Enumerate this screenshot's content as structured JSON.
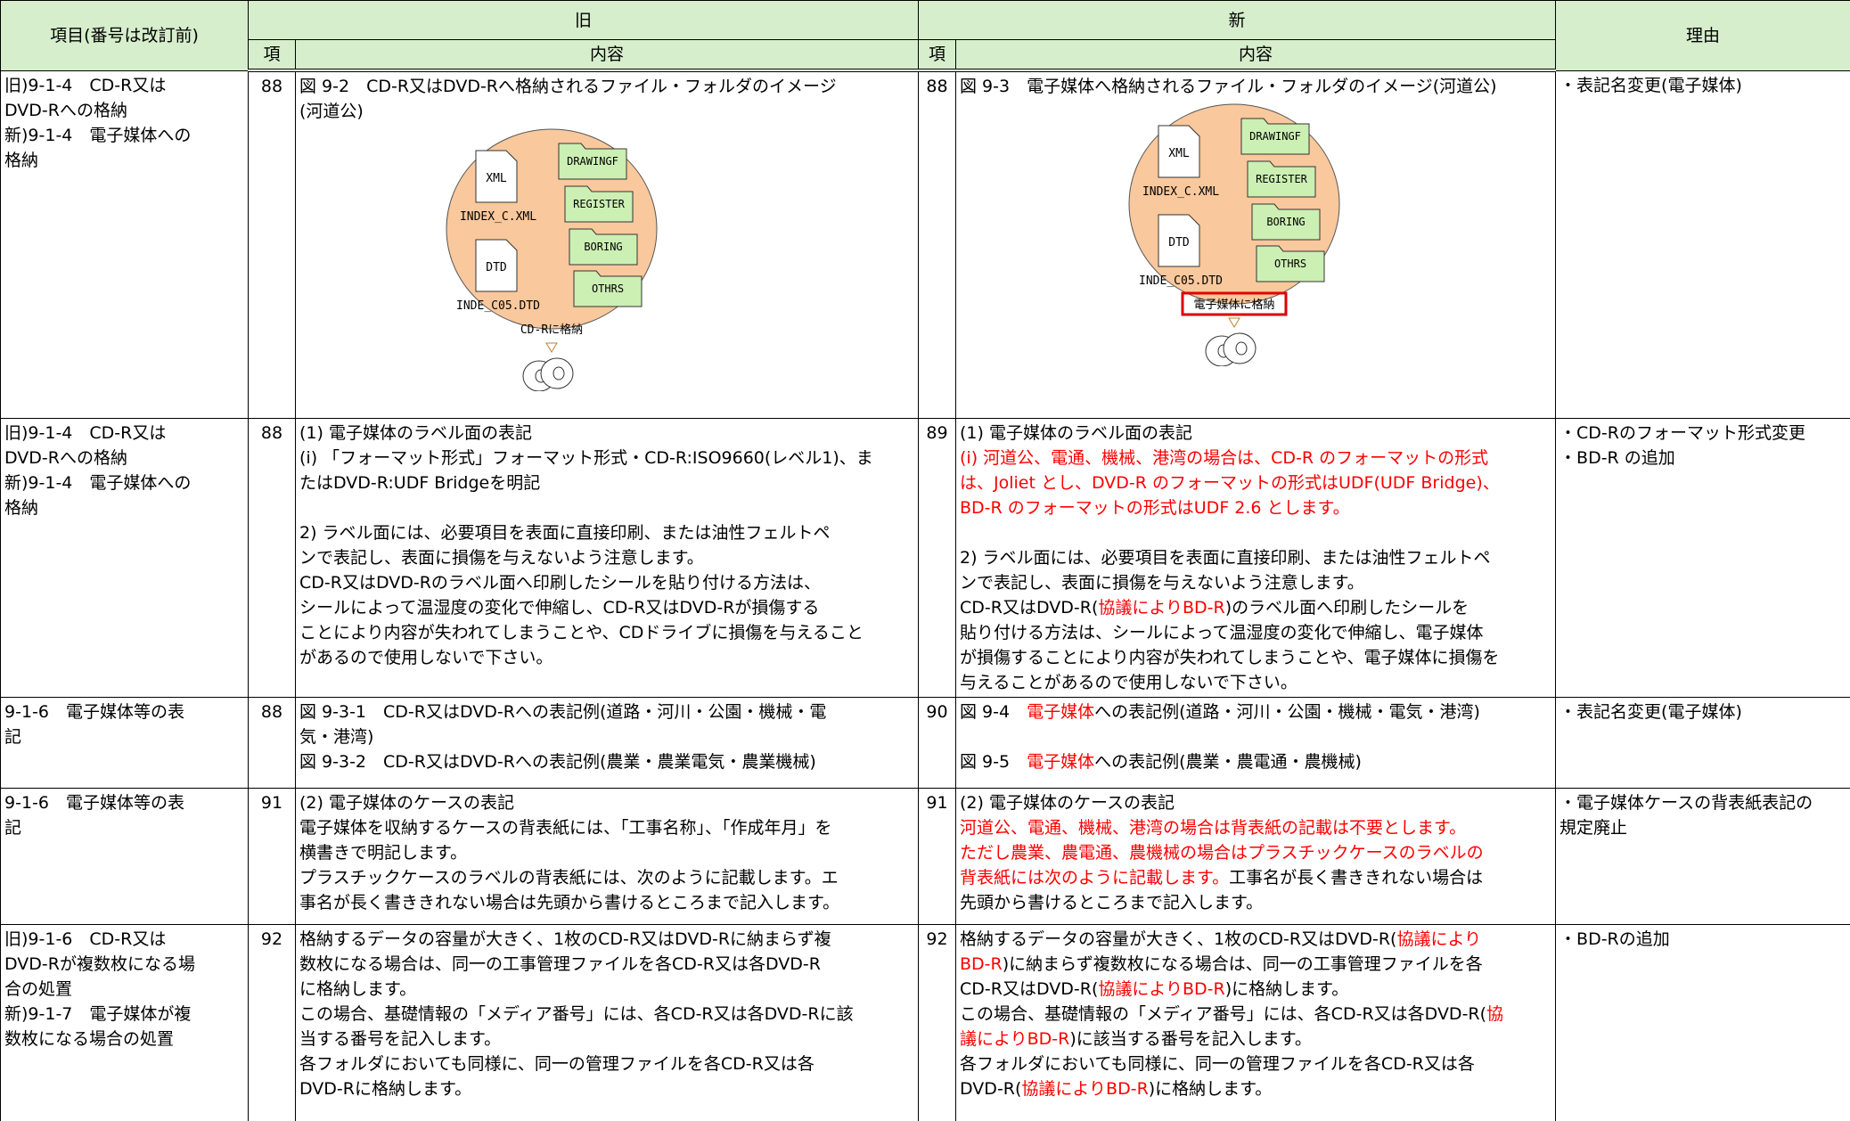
{
  "table": {
    "header": {
      "item": "項目(番号は改訂前)",
      "old": "旧",
      "new": "新",
      "reason": "理由",
      "page": "項",
      "content": "内容"
    },
    "rows": [
      {
        "item": [
          "旧)9-1-4　CD-R又は",
          "DVD-Rへの格納",
          "新)9-1-4　電子媒体への",
          "格納"
        ],
        "old_page": "88",
        "old_content": [
          [
            "図 9-2　CD-R又はDVD-Rへ格納されるファイル・フォルダのイメージ",
            "(河道公)"
          ]
        ],
        "old_figure": {
          "files": [
            "XML",
            "INDEX_C.XML",
            "DTD",
            "INDE_C05.DTD"
          ],
          "folders": [
            "DRAWINGF",
            "REGISTER",
            "BORING",
            "OTHRS"
          ],
          "media_label": "CD-Rに格納"
        },
        "new_page": "88",
        "new_content": [
          [
            "図 9-3　電子媒体へ格納されるファイル・フォルダのイメージ(河道公)"
          ]
        ],
        "new_figure": {
          "files": [
            "XML",
            "INDEX_C.XML",
            "DTD",
            "INDE_C05.DTD"
          ],
          "folders": [
            "DRAWINGF",
            "REGISTER",
            "BORING",
            "OTHRS"
          ],
          "media_label": "電子媒体に格納",
          "highlight_color": "#e00000"
        },
        "reason": [
          "・表記名変更(電子媒体)"
        ]
      },
      {
        "item": [
          "旧)9-1-4　CD-R又は",
          "DVD-Rへの格納",
          "新)9-1-4　電子媒体への",
          "格納"
        ],
        "old_page": "88",
        "old_content": [
          [
            "(1) 電子媒体のラベル面の表記",
            "(i) 「フォーマット形式」フォーマット形式・CD-R:ISO9660(レベル1)、ま",
            "たはDVD-R:UDF Bridgeを明記"
          ],
          [
            "2) ラベル面には、必要項目を表面に直接印刷、または油性フェルトペ",
            "ンで表記し、表面に損傷を与えないよう注意します。",
            "CD-R又はDVD-Rのラベル面へ印刷したシールを貼り付ける方法は、",
            "シールによって温湿度の変化で伸縮し、CD-R又はDVD-Rが損傷する",
            "ことにより内容が失われてしまうことや、CDドライブに損傷を与えること",
            "があるので使用しないで下さい。"
          ]
        ],
        "new_page": "89",
        "new_content": [
          [
            "(1) 電子媒体のラベル面の表記",
            [
              {
                "text": "(i) 河道公、電通、機械、港湾の場合は、CD-R のフォーマットの形式",
                "color": "#ff0000"
              }
            ],
            [
              {
                "text": "は、Joliet とし、DVD-R のフォーマットの形式はUDF(UDF Bridge)、",
                "color": "#ff0000"
              }
            ],
            [
              {
                "text": "BD-R のフォーマットの形式はUDF 2.6 とします。",
                "color": "#ff0000"
              }
            ]
          ],
          [
            "2) ラベル面には、必要項目を表面に直接印刷、または油性フェルトペ",
            "ンで表記し、表面に損傷を与えないよう注意します。",
            [
              "CD-R又はDVD-R(",
              {
                "text": "協議によりBD-R",
                "color": "#ff0000"
              },
              ")のラベル面へ印刷したシールを"
            ],
            "貼り付ける方法は、シールによって温湿度の変化で伸縮し、電子媒体",
            "が損傷することにより内容が失われてしまうことや、電子媒体に損傷を",
            "与えることがあるので使用しないで下さい。"
          ]
        ],
        "reason": [
          "・CD-Rのフォーマット形式変更",
          "・BD-R の追加"
        ]
      },
      {
        "item": [
          "9-1-6　電子媒体等の表",
          "記"
        ],
        "old_page": "88",
        "old_content": [
          [
            "図 9-3-1　CD-R又はDVD-Rへの表記例(道路・河川・公園・機械・電",
            "気・港湾)",
            "図 9-3-2　CD-R又はDVD-Rへの表記例(農業・農業電気・農業機械)"
          ]
        ],
        "new_page": "90",
        "new_content": [
          [
            [
              "図 9-4　",
              {
                "text": "電子媒体",
                "color": "#ff0000"
              },
              "への表記例(道路・河川・公園・機械・電気・港湾)"
            ]
          ],
          [
            [
              "図 9-5　",
              {
                "text": "電子媒体",
                "color": "#ff0000"
              },
              "への表記例(農業・農電通・農機械)"
            ]
          ]
        ],
        "reason": [
          "・表記名変更(電子媒体)"
        ]
      },
      {
        "item": [
          "9-1-6　電子媒体等の表",
          "記"
        ],
        "old_page": "91",
        "old_content": [
          [
            "(2) 電子媒体のケースの表記",
            "電子媒体を収納するケースの背表紙には、「工事名称」、「作成年月」を",
            "横書きで明記します。",
            "プラスチックケースのラベルの背表紙には、次のように記載します。エ",
            "事名が長く書ききれない場合は先頭から書けるところまで記入します。"
          ]
        ],
        "new_page": "91",
        "new_content": [
          [
            "(2) 電子媒体のケースの表記",
            [
              {
                "text": "河道公、電通、機械、港湾の場合は背表紙の記載は不要とします。",
                "color": "#ff0000"
              }
            ],
            [
              {
                "text": "ただし農業、農電通、農機械の場合はプラスチックケースのラベルの",
                "color": "#ff0000"
              }
            ],
            [
              {
                "text": "背表紙には次のように記載します。",
                "color": "#ff0000"
              },
              "工事名が長く書ききれない場合は"
            ],
            "先頭から書けるところまで記入します。"
          ]
        ],
        "reason": [
          "・電子媒体ケースの背表紙表記の",
          "規定廃止"
        ]
      },
      {
        "item": [
          "旧)9-1-6　CD-R又は",
          "DVD-Rが複数枚になる場",
          "合の処置",
          "新)9-1-7　電子媒体が複",
          "数枚になる場合の処置"
        ],
        "old_page": "92",
        "old_content": [
          [
            "格納するデータの容量が大きく、1枚のCD-R又はDVD-Rに納まらず複",
            "数枚になる場合は、同一の工事管理ファイルを各CD-R又は各DVD-R",
            "に格納します。",
            "この場合、基礎情報の「メディア番号」には、各CD-R又は各DVD-Rに該",
            "当する番号を記入します。",
            "各フォルダにおいても同様に、同一の管理ファイルを各CD-R又は各",
            "DVD-Rに格納します。"
          ]
        ],
        "new_page": "92",
        "new_content": [
          [
            [
              "格納するデータの容量が大きく、1枚のCD-R又はDVD-R(",
              {
                "text": "協議により",
                "color": "#ff0000"
              }
            ],
            [
              {
                "text": "BD-R",
                "color": "#ff0000"
              },
              ")に納まらず複数枚になる場合は、同一の工事管理ファイルを各"
            ],
            [
              "CD-R又はDVD-R(",
              {
                "text": "協議によりBD-R",
                "color": "#ff0000"
              },
              ")に格納します。"
            ],
            [
              "この場合、基礎情報の「メディア番号」には、各CD-R又は各DVD-R(",
              {
                "text": "協",
                "color": "#ff0000"
              }
            ],
            [
              {
                "text": "議によりBD-R",
                "color": "#ff0000"
              },
              ")に該当する番号を記入します。"
            ],
            "各フォルダにおいても同様に、同一の管理ファイルを各CD-R又は各",
            [
              "DVD-R(",
              {
                "text": "協議によりBD-R",
                "color": "#ff0000"
              },
              ")に格納します。"
            ]
          ]
        ],
        "reason": [
          "・BD-Rの追加"
        ]
      }
    ]
  }
}
